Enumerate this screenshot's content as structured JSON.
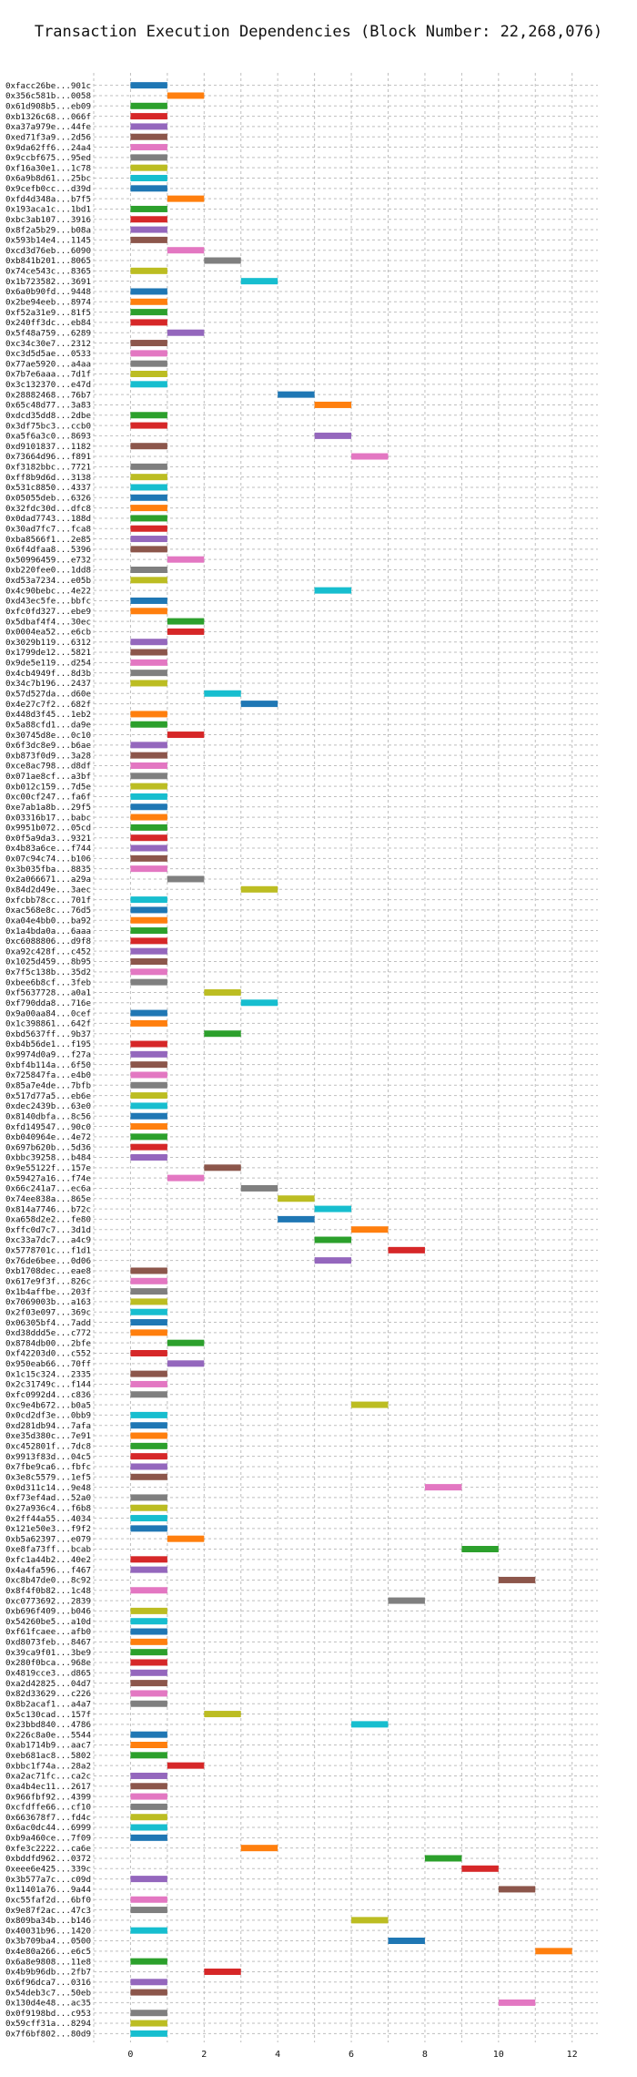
{
  "chart_data": {
    "type": "bar",
    "orientation": "horizontal",
    "title": "Transaction Execution Dependencies (Block Number: 22,268,076)",
    "xlim": [
      -1,
      12.7
    ],
    "xticks": [
      0,
      2,
      4,
      6,
      8,
      10,
      12
    ],
    "grid": true,
    "palette": [
      "#1f77b4",
      "#ff7f0e",
      "#2ca02c",
      "#d62728",
      "#9467bd",
      "#8c564b",
      "#e377c2",
      "#7f7f7f",
      "#bcbd22",
      "#17becf"
    ],
    "rows": [
      {
        "label": "0xfacc26be...901c",
        "start": 0,
        "end": 1
      },
      {
        "label": "0x356c581b...0058",
        "start": 1,
        "end": 2
      },
      {
        "label": "0x61d908b5...eb09",
        "start": 0,
        "end": 1
      },
      {
        "label": "0xb1326c68...066f",
        "start": 0,
        "end": 1
      },
      {
        "label": "0xa37a979e...44fe",
        "start": 0,
        "end": 1
      },
      {
        "label": "0xed71f3a9...2d56",
        "start": 0,
        "end": 1
      },
      {
        "label": "0x9da62ff6...24a4",
        "start": 0,
        "end": 1
      },
      {
        "label": "0x9ccbf675...95ed",
        "start": 0,
        "end": 1
      },
      {
        "label": "0xf16a30e1...1c78",
        "start": 0,
        "end": 1
      },
      {
        "label": "0x6a9b8d61...25bc",
        "start": 0,
        "end": 1
      },
      {
        "label": "0x9cefb0cc...d39d",
        "start": 0,
        "end": 1
      },
      {
        "label": "0xfd4d348a...b7f5",
        "start": 1,
        "end": 2
      },
      {
        "label": "0x193aca1c...1bd1",
        "start": 0,
        "end": 1
      },
      {
        "label": "0xbc3ab107...3916",
        "start": 0,
        "end": 1
      },
      {
        "label": "0x8f2a5b29...b08a",
        "start": 0,
        "end": 1
      },
      {
        "label": "0x593b14e4...1145",
        "start": 0,
        "end": 1
      },
      {
        "label": "0xcd3d76eb...6090",
        "start": 1,
        "end": 2
      },
      {
        "label": "0xb841b201...8065",
        "start": 2,
        "end": 3
      },
      {
        "label": "0x74ce543c...8365",
        "start": 0,
        "end": 1
      },
      {
        "label": "0x1b723582...3691",
        "start": 3,
        "end": 4
      },
      {
        "label": "0x6a0b90fd...9448",
        "start": 0,
        "end": 1
      },
      {
        "label": "0x2be94eeb...8974",
        "start": 0,
        "end": 1
      },
      {
        "label": "0xf52a31e9...81f5",
        "start": 0,
        "end": 1
      },
      {
        "label": "0x240ff3dc...eb84",
        "start": 0,
        "end": 1
      },
      {
        "label": "0x5f48a759...6289",
        "start": 1,
        "end": 2
      },
      {
        "label": "0xc34c30e7...2312",
        "start": 0,
        "end": 1
      },
      {
        "label": "0xc3d5d5ae...0533",
        "start": 0,
        "end": 1
      },
      {
        "label": "0x77ae5920...a4aa",
        "start": 0,
        "end": 1
      },
      {
        "label": "0x7b7e6aaa...7d1f",
        "start": 0,
        "end": 1
      },
      {
        "label": "0x3c132370...e47d",
        "start": 0,
        "end": 1
      },
      {
        "label": "0x28882468...76b7",
        "start": 4,
        "end": 5
      },
      {
        "label": "0x65c48d77...3a83",
        "start": 5,
        "end": 6
      },
      {
        "label": "0xdcd35dd8...2dbe",
        "start": 0,
        "end": 1
      },
      {
        "label": "0x3df75bc3...ccb0",
        "start": 0,
        "end": 1
      },
      {
        "label": "0xa5f6a3c0...8693",
        "start": 5,
        "end": 6
      },
      {
        "label": "0xd9101837...1182",
        "start": 0,
        "end": 1
      },
      {
        "label": "0x73664d96...f891",
        "start": 6,
        "end": 7
      },
      {
        "label": "0xf3182bbc...7721",
        "start": 0,
        "end": 1
      },
      {
        "label": "0xff8b9d6d...3138",
        "start": 0,
        "end": 1
      },
      {
        "label": "0x531c8850...4337",
        "start": 0,
        "end": 1
      },
      {
        "label": "0x05055deb...6326",
        "start": 0,
        "end": 1
      },
      {
        "label": "0x32fdc30d...dfc8",
        "start": 0,
        "end": 1
      },
      {
        "label": "0x0dad7743...188d",
        "start": 0,
        "end": 1
      },
      {
        "label": "0x30ad7fc7...fca8",
        "start": 0,
        "end": 1
      },
      {
        "label": "0xba8566f1...2e85",
        "start": 0,
        "end": 1
      },
      {
        "label": "0x6f4dfaa8...5396",
        "start": 0,
        "end": 1
      },
      {
        "label": "0x50996459...e732",
        "start": 1,
        "end": 2
      },
      {
        "label": "0xb220fee0...1dd8",
        "start": 0,
        "end": 1
      },
      {
        "label": "0xd53a7234...e05b",
        "start": 0,
        "end": 1
      },
      {
        "label": "0x4c90bebc...4e22",
        "start": 5,
        "end": 6
      },
      {
        "label": "0xd43ec5fe...bbfc",
        "start": 0,
        "end": 1
      },
      {
        "label": "0xfc0fd327...ebe9",
        "start": 0,
        "end": 1
      },
      {
        "label": "0x5dbaf4f4...30ec",
        "start": 1,
        "end": 2
      },
      {
        "label": "0x0004ea52...e6cb",
        "start": 1,
        "end": 2
      },
      {
        "label": "0x3029b119...6312",
        "start": 0,
        "end": 1
      },
      {
        "label": "0x1799de12...5821",
        "start": 0,
        "end": 1
      },
      {
        "label": "0x9de5e119...d254",
        "start": 0,
        "end": 1
      },
      {
        "label": "0x4cb4949f...8d3b",
        "start": 0,
        "end": 1
      },
      {
        "label": "0x34c7b196...2437",
        "start": 0,
        "end": 1
      },
      {
        "label": "0x57d527da...d60e",
        "start": 2,
        "end": 3
      },
      {
        "label": "0x4e27c7f2...682f",
        "start": 3,
        "end": 4
      },
      {
        "label": "0x448d3f45...1eb2",
        "start": 0,
        "end": 1
      },
      {
        "label": "0x5a88cfd1...da9e",
        "start": 0,
        "end": 1
      },
      {
        "label": "0x30745d8e...0c10",
        "start": 1,
        "end": 2
      },
      {
        "label": "0x6f3dc8e9...b6ae",
        "start": 0,
        "end": 1
      },
      {
        "label": "0xb873f0d9...3a28",
        "start": 0,
        "end": 1
      },
      {
        "label": "0xce8ac798...d8df",
        "start": 0,
        "end": 1
      },
      {
        "label": "0x071ae8cf...a3bf",
        "start": 0,
        "end": 1
      },
      {
        "label": "0xb012c159...7d5e",
        "start": 0,
        "end": 1
      },
      {
        "label": "0xc00cf247...fa6f",
        "start": 0,
        "end": 1
      },
      {
        "label": "0xe7ab1a8b...29f5",
        "start": 0,
        "end": 1
      },
      {
        "label": "0x03316b17...babc",
        "start": 0,
        "end": 1
      },
      {
        "label": "0x9951b072...05cd",
        "start": 0,
        "end": 1
      },
      {
        "label": "0x0f5a9da3...9321",
        "start": 0,
        "end": 1
      },
      {
        "label": "0x4b83a6ce...f744",
        "start": 0,
        "end": 1
      },
      {
        "label": "0x07c94c74...b106",
        "start": 0,
        "end": 1
      },
      {
        "label": "0x3b035fba...8835",
        "start": 0,
        "end": 1
      },
      {
        "label": "0x2a066671...a29a",
        "start": 1,
        "end": 2
      },
      {
        "label": "0x84d2d49e...3aec",
        "start": 3,
        "end": 4
      },
      {
        "label": "0xfcbb78cc...701f",
        "start": 0,
        "end": 1
      },
      {
        "label": "0xac568e8c...76d5",
        "start": 0,
        "end": 1
      },
      {
        "label": "0xa04e4bb0...ba92",
        "start": 0,
        "end": 1
      },
      {
        "label": "0x1a4bda0a...6aaa",
        "start": 0,
        "end": 1
      },
      {
        "label": "0xc6088806...d9f8",
        "start": 0,
        "end": 1
      },
      {
        "label": "0xa92c428f...c452",
        "start": 0,
        "end": 1
      },
      {
        "label": "0x1025d459...8b95",
        "start": 0,
        "end": 1
      },
      {
        "label": "0x7f5c138b...35d2",
        "start": 0,
        "end": 1
      },
      {
        "label": "0xbee6b8cf...3feb",
        "start": 0,
        "end": 1
      },
      {
        "label": "0xf5637728...a0a1",
        "start": 2,
        "end": 3
      },
      {
        "label": "0xf790dda8...716e",
        "start": 3,
        "end": 4
      },
      {
        "label": "0x9a00aa84...0cef",
        "start": 0,
        "end": 1
      },
      {
        "label": "0x1c398861...642f",
        "start": 0,
        "end": 1
      },
      {
        "label": "0xbd5637ff...9b37",
        "start": 2,
        "end": 3
      },
      {
        "label": "0xb4b56de1...f195",
        "start": 0,
        "end": 1
      },
      {
        "label": "0x9974d0a9...f27a",
        "start": 0,
        "end": 1
      },
      {
        "label": "0xbf4b114a...6f50",
        "start": 0,
        "end": 1
      },
      {
        "label": "0x725847fa...e4b0",
        "start": 0,
        "end": 1
      },
      {
        "label": "0x85a7e4de...7bfb",
        "start": 0,
        "end": 1
      },
      {
        "label": "0x517d77a5...eb6e",
        "start": 0,
        "end": 1
      },
      {
        "label": "0xdec2439b...63e0",
        "start": 0,
        "end": 1
      },
      {
        "label": "0x8140dbfa...8c56",
        "start": 0,
        "end": 1
      },
      {
        "label": "0xfd149547...90c0",
        "start": 0,
        "end": 1
      },
      {
        "label": "0xb040964e...4e72",
        "start": 0,
        "end": 1
      },
      {
        "label": "0x697b620b...5d36",
        "start": 0,
        "end": 1
      },
      {
        "label": "0xbbc39258...b484",
        "start": 0,
        "end": 1
      },
      {
        "label": "0x9e55122f...157e",
        "start": 2,
        "end": 3
      },
      {
        "label": "0x59427a16...f74e",
        "start": 1,
        "end": 2
      },
      {
        "label": "0x66c241a7...ec6a",
        "start": 3,
        "end": 4
      },
      {
        "label": "0x74ee838a...865e",
        "start": 4,
        "end": 5
      },
      {
        "label": "0x814a7746...b72c",
        "start": 5,
        "end": 6
      },
      {
        "label": "0xa658d2e2...fe80",
        "start": 4,
        "end": 5
      },
      {
        "label": "0xffc0d7c7...3d1d",
        "start": 6,
        "end": 7
      },
      {
        "label": "0xc33a7dc7...a4c9",
        "start": 5,
        "end": 6
      },
      {
        "label": "0x5778701c...f1d1",
        "start": 7,
        "end": 8
      },
      {
        "label": "0x76de6bee...0d06",
        "start": 5,
        "end": 6
      },
      {
        "label": "0xb1708dec...eae8",
        "start": 0,
        "end": 1
      },
      {
        "label": "0x617e9f3f...826c",
        "start": 0,
        "end": 1
      },
      {
        "label": "0x1b4affbe...203f",
        "start": 0,
        "end": 1
      },
      {
        "label": "0x7069003b...a163",
        "start": 0,
        "end": 1
      },
      {
        "label": "0x2f03e097...369c",
        "start": 0,
        "end": 1
      },
      {
        "label": "0x06305bf4...7add",
        "start": 0,
        "end": 1
      },
      {
        "label": "0xd38ddd5e...c772",
        "start": 0,
        "end": 1
      },
      {
        "label": "0x8784db00...2bfe",
        "start": 1,
        "end": 2
      },
      {
        "label": "0xf42203d0...c552",
        "start": 0,
        "end": 1
      },
      {
        "label": "0x950eab66...70ff",
        "start": 1,
        "end": 2
      },
      {
        "label": "0x1c15c324...2335",
        "start": 0,
        "end": 1
      },
      {
        "label": "0x2c31749c...f144",
        "start": 0,
        "end": 1
      },
      {
        "label": "0xfc0992d4...c836",
        "start": 0,
        "end": 1
      },
      {
        "label": "0xc9e4b672...b0a5",
        "start": 6,
        "end": 7
      },
      {
        "label": "0x0cd2df3e...0bb9",
        "start": 0,
        "end": 1
      },
      {
        "label": "0xd281db94...7afa",
        "start": 0,
        "end": 1
      },
      {
        "label": "0xe35d380c...7e91",
        "start": 0,
        "end": 1
      },
      {
        "label": "0xc452801f...7dc8",
        "start": 0,
        "end": 1
      },
      {
        "label": "0x9913f83d...04c5",
        "start": 0,
        "end": 1
      },
      {
        "label": "0x7fbe9ca6...fbfc",
        "start": 0,
        "end": 1
      },
      {
        "label": "0x3e8c5579...1ef5",
        "start": 0,
        "end": 1
      },
      {
        "label": "0x0d311c14...9e48",
        "start": 8,
        "end": 9
      },
      {
        "label": "0xf73ef4ad...52a0",
        "start": 0,
        "end": 1
      },
      {
        "label": "0x27a936c4...f6b8",
        "start": 0,
        "end": 1
      },
      {
        "label": "0x2ff44a55...4034",
        "start": 0,
        "end": 1
      },
      {
        "label": "0x121e50e3...f9f2",
        "start": 0,
        "end": 1
      },
      {
        "label": "0xb5a62397...e079",
        "start": 1,
        "end": 2
      },
      {
        "label": "0xe8fa73ff...bcab",
        "start": 9,
        "end": 10
      },
      {
        "label": "0xfc1a44b2...40e2",
        "start": 0,
        "end": 1
      },
      {
        "label": "0x4a4fa596...f467",
        "start": 0,
        "end": 1
      },
      {
        "label": "0xc8b47de0...8c92",
        "start": 10,
        "end": 11
      },
      {
        "label": "0x8f4f0b82...1c48",
        "start": 0,
        "end": 1
      },
      {
        "label": "0xc0773692...2839",
        "start": 7,
        "end": 8
      },
      {
        "label": "0xb696f409...b046",
        "start": 0,
        "end": 1
      },
      {
        "label": "0x54260be5...a10d",
        "start": 0,
        "end": 1
      },
      {
        "label": "0xf61fcaee...afb0",
        "start": 0,
        "end": 1
      },
      {
        "label": "0xd8073feb...8467",
        "start": 0,
        "end": 1
      },
      {
        "label": "0x39ca9f01...3be9",
        "start": 0,
        "end": 1
      },
      {
        "label": "0x280f0bca...968e",
        "start": 0,
        "end": 1
      },
      {
        "label": "0x4819cce3...d865",
        "start": 0,
        "end": 1
      },
      {
        "label": "0xa2d42825...04d7",
        "start": 0,
        "end": 1
      },
      {
        "label": "0x82d33629...c226",
        "start": 0,
        "end": 1
      },
      {
        "label": "0x8b2acaf1...a4a7",
        "start": 0,
        "end": 1
      },
      {
        "label": "0x5c130cad...157f",
        "start": 2,
        "end": 3
      },
      {
        "label": "0x23bbd840...4786",
        "start": 6,
        "end": 7
      },
      {
        "label": "0x226c8a0e...5544",
        "start": 0,
        "end": 1
      },
      {
        "label": "0xab1714b9...aac7",
        "start": 0,
        "end": 1
      },
      {
        "label": "0xeb681ac8...5802",
        "start": 0,
        "end": 1
      },
      {
        "label": "0xbbc1f74a...28a2",
        "start": 1,
        "end": 2
      },
      {
        "label": "0xa2ac71fc...ca2c",
        "start": 0,
        "end": 1
      },
      {
        "label": "0xa4b4ec11...2617",
        "start": 0,
        "end": 1
      },
      {
        "label": "0x966fbf92...4399",
        "start": 0,
        "end": 1
      },
      {
        "label": "0xcfdffe66...cf10",
        "start": 0,
        "end": 1
      },
      {
        "label": "0x663678f7...fd4c",
        "start": 0,
        "end": 1
      },
      {
        "label": "0x6ac0dc44...6999",
        "start": 0,
        "end": 1
      },
      {
        "label": "0xb9a460ce...7f09",
        "start": 0,
        "end": 1
      },
      {
        "label": "0xfe3c2222...ca6e",
        "start": 3,
        "end": 4
      },
      {
        "label": "0xbddfd962...0372",
        "start": 8,
        "end": 9
      },
      {
        "label": "0xeee6e425...339c",
        "start": 9,
        "end": 10
      },
      {
        "label": "0x3b577a7c...c09d",
        "start": 0,
        "end": 1
      },
      {
        "label": "0x11401a76...9a44",
        "start": 10,
        "end": 11
      },
      {
        "label": "0xc55faf2d...6bf0",
        "start": 0,
        "end": 1
      },
      {
        "label": "0x9e87f2ac...47c3",
        "start": 0,
        "end": 1
      },
      {
        "label": "0x809ba34b...b146",
        "start": 6,
        "end": 7
      },
      {
        "label": "0x40031b96...1420",
        "start": 0,
        "end": 1
      },
      {
        "label": "0x3b709ba4...0500",
        "start": 7,
        "end": 8
      },
      {
        "label": "0x4e80a266...e6c5",
        "start": 11,
        "end": 12
      },
      {
        "label": "0x6a8e9808...11e8",
        "start": 0,
        "end": 1
      },
      {
        "label": "0x4b9b96db...2fb7",
        "start": 2,
        "end": 3
      },
      {
        "label": "0x6f96dca7...0316",
        "start": 0,
        "end": 1
      },
      {
        "label": "0x54deb3c7...50eb",
        "start": 0,
        "end": 1
      },
      {
        "label": "0x130d4e48...ac35",
        "start": 10,
        "end": 11
      },
      {
        "label": "0x0f9198bd...c953",
        "start": 0,
        "end": 1
      },
      {
        "label": "0x59cff31a...8294",
        "start": 0,
        "end": 1
      },
      {
        "label": "0x7f6bf802...80d9",
        "start": 0,
        "end": 1
      }
    ]
  }
}
